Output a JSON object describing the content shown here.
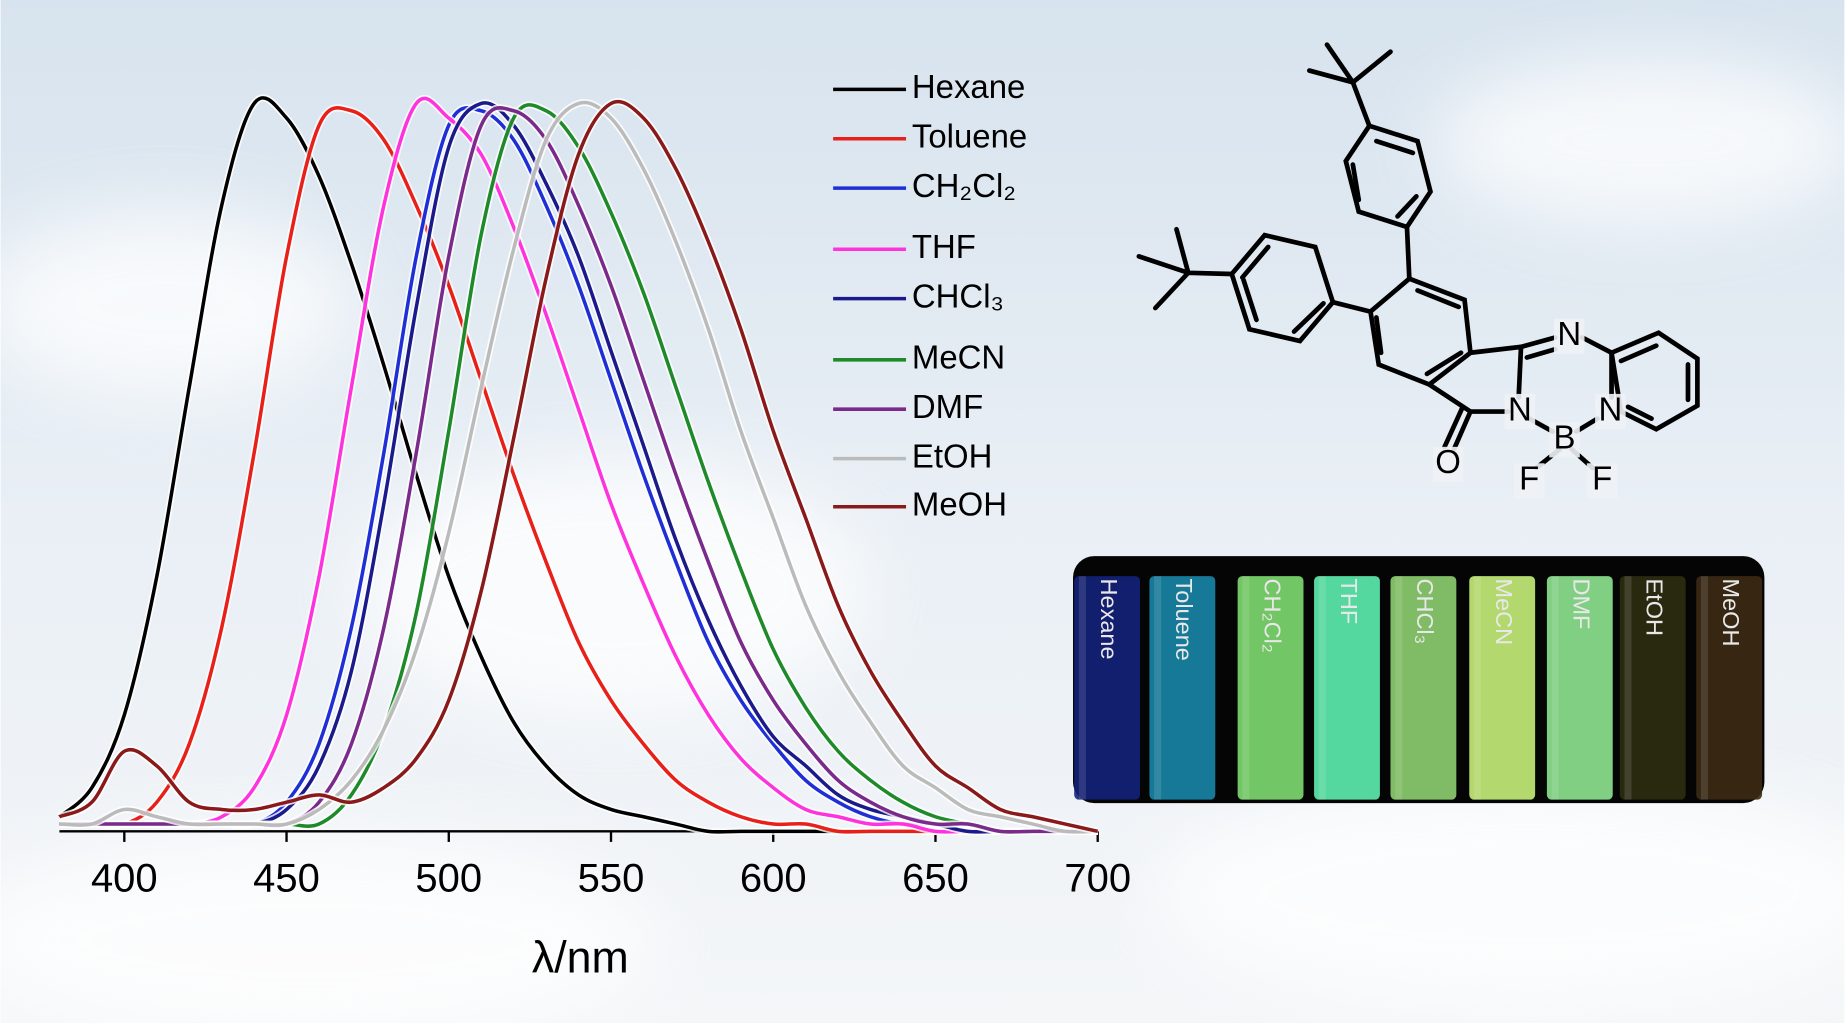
{
  "chart_data": {
    "type": "line",
    "x": [
      380,
      390,
      400,
      410,
      420,
      430,
      440,
      450,
      460,
      470,
      480,
      490,
      500,
      510,
      520,
      530,
      540,
      550,
      560,
      570,
      580,
      590,
      600,
      610,
      620,
      630,
      640,
      650,
      660,
      670,
      680,
      690,
      700
    ],
    "series": [
      {
        "name": "Hexane",
        "color": "#000000",
        "values": [
          0.02,
          0.06,
          0.16,
          0.35,
          0.61,
          0.86,
          1.0,
          0.98,
          0.9,
          0.78,
          0.64,
          0.49,
          0.35,
          0.24,
          0.15,
          0.09,
          0.05,
          0.03,
          0.02,
          0.01,
          0,
          0,
          0,
          0,
          0,
          0,
          0,
          0,
          0,
          0,
          0,
          0,
          0
        ]
      },
      {
        "name": "Toluene",
        "color": "#e8201a",
        "values": [
          0.01,
          0.01,
          0.01,
          0.04,
          0.12,
          0.28,
          0.52,
          0.79,
          0.97,
          0.99,
          0.95,
          0.86,
          0.75,
          0.62,
          0.49,
          0.37,
          0.26,
          0.18,
          0.12,
          0.07,
          0.04,
          0.02,
          0.01,
          0.01,
          0,
          0,
          0,
          0,
          0,
          0,
          0,
          0,
          0
        ]
      },
      {
        "name": "CH₂Cl₂",
        "color": "#1f2fd6",
        "values": [
          0.01,
          0.01,
          0.01,
          0.01,
          0.01,
          0.01,
          0.01,
          0.04,
          0.12,
          0.28,
          0.52,
          0.79,
          0.97,
          0.99,
          0.95,
          0.86,
          0.75,
          0.62,
          0.49,
          0.37,
          0.26,
          0.18,
          0.12,
          0.07,
          0.04,
          0.02,
          0.01,
          0.01,
          0,
          0,
          0,
          0,
          0
        ]
      },
      {
        "name": "THF",
        "color": "#ff33dd",
        "values": [
          0.01,
          0.01,
          0.01,
          0.01,
          0.01,
          0.02,
          0.06,
          0.16,
          0.35,
          0.61,
          0.86,
          1.0,
          0.98,
          0.93,
          0.83,
          0.71,
          0.58,
          0.45,
          0.34,
          0.24,
          0.16,
          0.1,
          0.06,
          0.03,
          0.02,
          0.01,
          0.01,
          0,
          0,
          0,
          0,
          0,
          0
        ]
      },
      {
        "name": "CHCl₃",
        "color": "#1a1a8a",
        "values": [
          0.01,
          0.01,
          0.01,
          0.01,
          0.01,
          0.01,
          0.01,
          0.03,
          0.09,
          0.22,
          0.45,
          0.72,
          0.94,
          1.0,
          0.97,
          0.89,
          0.79,
          0.66,
          0.53,
          0.4,
          0.29,
          0.2,
          0.13,
          0.09,
          0.05,
          0.03,
          0.02,
          0.01,
          0,
          0,
          0,
          0,
          0
        ]
      },
      {
        "name": "MeCN",
        "color": "#1e8a2a",
        "values": [
          0.01,
          0.01,
          0.01,
          0.01,
          0.01,
          0.01,
          0.01,
          0.01,
          0.01,
          0.05,
          0.14,
          0.3,
          0.55,
          0.82,
          0.98,
          0.99,
          0.94,
          0.85,
          0.74,
          0.61,
          0.48,
          0.36,
          0.25,
          0.17,
          0.11,
          0.07,
          0.04,
          0.02,
          0.01,
          0,
          0,
          0,
          0
        ]
      },
      {
        "name": "DMF",
        "color": "#7a2a8a",
        "values": [
          0.01,
          0.01,
          0.01,
          0.01,
          0.01,
          0.01,
          0.01,
          0.01,
          0.04,
          0.12,
          0.28,
          0.52,
          0.79,
          0.97,
          0.99,
          0.95,
          0.86,
          0.75,
          0.62,
          0.49,
          0.37,
          0.26,
          0.18,
          0.12,
          0.07,
          0.04,
          0.02,
          0.01,
          0.01,
          0,
          0,
          0,
          0
        ]
      },
      {
        "name": "EtOH",
        "color": "#bbbbbb",
        "values": [
          0.01,
          0.01,
          0.03,
          0.02,
          0.01,
          0.01,
          0.01,
          0.01,
          0.03,
          0.07,
          0.14,
          0.25,
          0.41,
          0.61,
          0.8,
          0.95,
          1.0,
          0.98,
          0.91,
          0.81,
          0.69,
          0.55,
          0.43,
          0.31,
          0.22,
          0.15,
          0.09,
          0.06,
          0.03,
          0.02,
          0.01,
          0,
          0
        ]
      },
      {
        "name": "MeOH",
        "color": "#8a1a1a",
        "values": [
          0.02,
          0.04,
          0.11,
          0.09,
          0.04,
          0.03,
          0.03,
          0.04,
          0.05,
          0.04,
          0.06,
          0.1,
          0.18,
          0.33,
          0.54,
          0.76,
          0.93,
          1.0,
          0.98,
          0.91,
          0.81,
          0.69,
          0.55,
          0.43,
          0.31,
          0.22,
          0.15,
          0.09,
          0.06,
          0.03,
          0.02,
          0.01,
          0
        ]
      }
    ],
    "xlim": [
      380,
      700
    ],
    "ylim": [
      0,
      1
    ],
    "xticks": [
      400,
      450,
      500,
      550,
      600,
      650,
      700
    ],
    "x_label": "λ/nm"
  },
  "molecule": {
    "atoms": [
      "N",
      "N",
      "N",
      "B",
      "O",
      "F",
      "F"
    ]
  },
  "photo": {
    "vials": [
      {
        "label": "Hexane",
        "color": "#14217a"
      },
      {
        "label": "Toluene",
        "color": "#1a86a8"
      },
      {
        "label": "CH₂Cl₂",
        "color": "#7fdc70"
      },
      {
        "label": "THF",
        "color": "#5ef0b0"
      },
      {
        "label": "CHCl₃",
        "color": "#8ed070"
      },
      {
        "label": "MeCN",
        "color": "#c6f07a"
      },
      {
        "label": "DMF",
        "color": "#8ee690"
      },
      {
        "label": "EtOH",
        "color": "#2e2e12"
      },
      {
        "label": "MeOH",
        "color": "#3c2a14"
      }
    ]
  }
}
